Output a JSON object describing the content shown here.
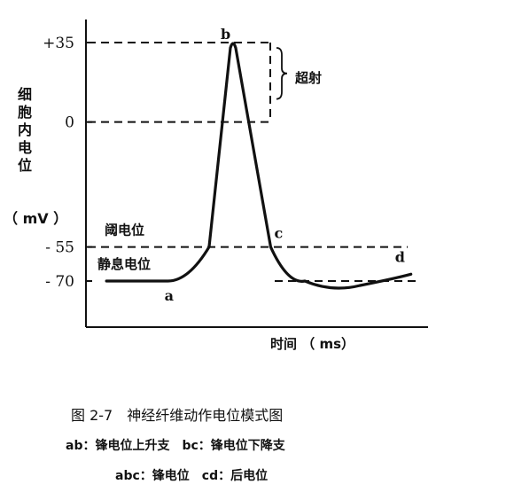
{
  "chart_data": {
    "type": "line",
    "ylabel_chars": [
      "细",
      "胞",
      "内",
      "电",
      "位"
    ],
    "ylabel_unit": "（ mV ）",
    "xlabel": "时间 （ ms）",
    "yticks": [
      {
        "value": 35,
        "label": "+35"
      },
      {
        "value": 0,
        "label": "0"
      },
      {
        "value": -55,
        "label": "- 55"
      },
      {
        "value": -70,
        "label": "- 70"
      }
    ],
    "ylim": [
      -90,
      45
    ],
    "xlim": [
      0,
      10
    ],
    "series": [
      {
        "x": [
          0.6,
          2.4,
          3.0,
          3.6,
          4.3,
          4.85,
          5.4,
          5.9,
          6.4,
          7.2,
          8.0,
          9.0,
          9.5
        ],
        "y": [
          -70,
          -70,
          -63,
          -55,
          35,
          -20,
          -55,
          -64,
          -70,
          -73,
          -72,
          -69,
          -67
        ]
      }
    ],
    "points": [
      {
        "label": "a",
        "x": 2.4,
        "y": -70
      },
      {
        "label": "b",
        "x": 4.3,
        "y": 35
      },
      {
        "label": "c",
        "x": 5.4,
        "y": -55
      },
      {
        "label": "d",
        "x": 9.5,
        "y": -67
      }
    ],
    "annotations": {
      "threshold": "阈电位",
      "resting": "静息电位",
      "overshoot": "超射"
    }
  },
  "caption": {
    "title": "图 2-7　神经纤维动作电位模式图",
    "line1": "ab：锋电位上升支　bc：锋电位下降支",
    "line2": "abc：锋电位　cd：后电位"
  }
}
